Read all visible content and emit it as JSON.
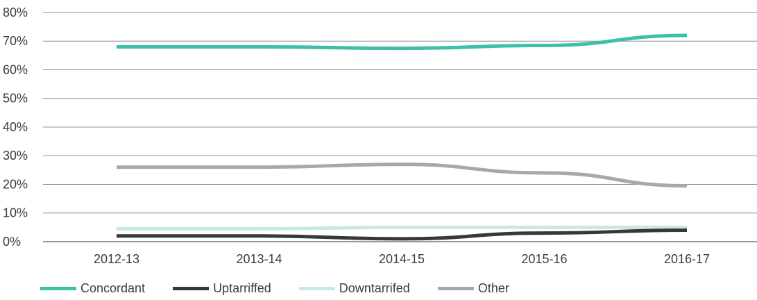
{
  "chart_data": {
    "type": "line",
    "categories": [
      "2012-13",
      "2013-14",
      "2014-15",
      "2015-16",
      "2016-17"
    ],
    "series": [
      {
        "name": "Concordant",
        "color": "#3dbfa8",
        "values": [
          68,
          68,
          67.5,
          68.5,
          72
        ]
      },
      {
        "name": "Uptarriffed",
        "color": "#383838",
        "values": [
          2,
          2,
          1,
          3,
          4
        ]
      },
      {
        "name": "Downtarrifed",
        "color": "#c6e9e0",
        "values": [
          4.5,
          4.5,
          5,
          5,
          5
        ]
      },
      {
        "name": "Other",
        "color": "#a8a7ab",
        "values": [
          26,
          26,
          27,
          24,
          19.5
        ]
      }
    ],
    "y_ticks": [
      "0%",
      "10%",
      "20%",
      "30%",
      "40%",
      "50%",
      "60%",
      "70%",
      "80%"
    ],
    "ylim": [
      0,
      80
    ],
    "grid": true,
    "legend_position": "bottom-left"
  }
}
